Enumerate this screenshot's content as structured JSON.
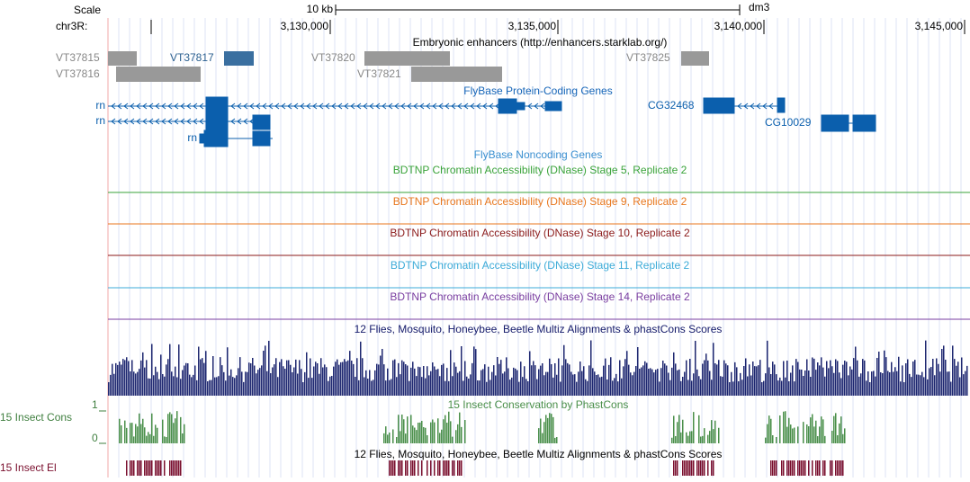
{
  "scale": {
    "label": "Scale",
    "size": "10 kb",
    "assembly": "dm3"
  },
  "chrom": "chr3R:",
  "positions": [
    "3,130,000",
    "3,135,000",
    "3,140,000",
    "3,145,000"
  ],
  "enhancers": {
    "title": "Embryonic enhancers (http://enhancers.starklab.org/)",
    "items": [
      "VT37815",
      "VT37816",
      "VT37817",
      "VT37820",
      "VT37821",
      "VT37825"
    ]
  },
  "protein_genes": {
    "title": "FlyBase Protein-Coding Genes",
    "labels": [
      "rn",
      "rn",
      "rn",
      "CG32468",
      "CG10029"
    ]
  },
  "noncoding_genes": {
    "title": "FlyBase Noncoding Genes"
  },
  "dnase": [
    "BDTNP Chromatin Accessibility (DNase) Stage 5, Replicate 2",
    "BDTNP Chromatin Accessibility (DNase) Stage 9, Replicate 2",
    "BDTNP Chromatin Accessibility (DNase) Stage 10, Replicate 2",
    "BDTNP Chromatin Accessibility (DNase) Stage 11, Replicate 2",
    "BDTNP Chromatin Accessibility (DNase) Stage 14, Replicate 2"
  ],
  "multiz": {
    "title": "12 Flies, Mosquito, Honeybee, Beetle Multiz Alignments & phastCons Scores"
  },
  "phastcons": {
    "title": "15 Insect Conservation by PhastCons",
    "label": "15 Insect Cons",
    "max": "1",
    "min": "0"
  },
  "multiz2": {
    "title": "12 Flies, Mosquito, Honeybee, Beetle Multiz Alignments & phastCons Scores"
  },
  "elements": {
    "label": "15 Insect El"
  }
}
